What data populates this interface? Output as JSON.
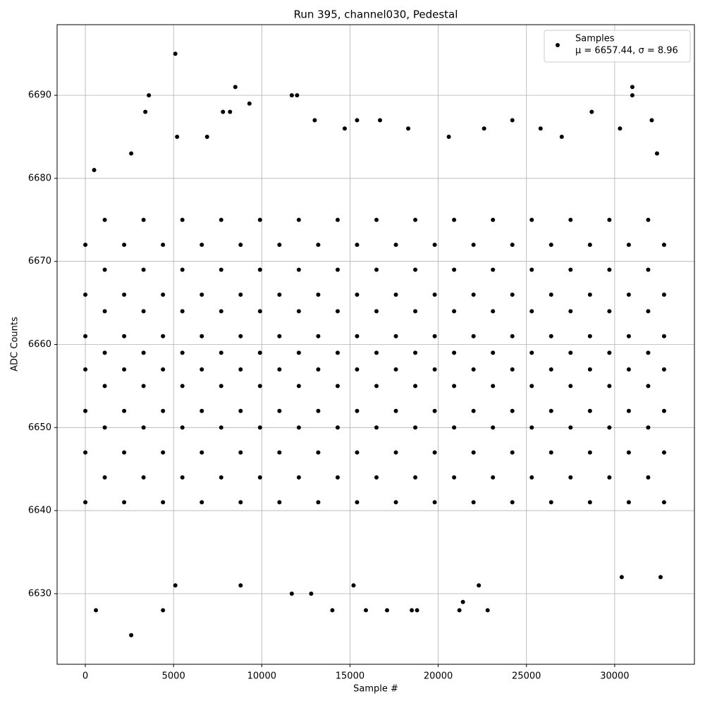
{
  "chart_data": {
    "type": "scatter",
    "title": "Run 395, channel030, Pedestal",
    "x_label": "Sample #",
    "y_label": "ADC Counts",
    "xlim": [
      -1600,
      34520
    ],
    "ylim": [
      6621.5,
      6698.5
    ],
    "xticks": [
      0,
      5000,
      10000,
      15000,
      20000,
      25000,
      30000
    ],
    "yticks": [
      6630,
      6640,
      6650,
      6660,
      6670,
      6680,
      6690
    ],
    "grid": true,
    "legend": "upper right",
    "legend_note": "μ = 6657.44, σ = 8.96",
    "series": [
      {
        "name": "Samples",
        "color": "#000000",
        "x": [
          0,
          0,
          0,
          0,
          0,
          0,
          0,
          1100,
          1100,
          1100,
          1100,
          1100,
          1100,
          1100,
          2200,
          2200,
          2200,
          2200,
          2200,
          2200,
          2200,
          3300,
          3300,
          3300,
          3300,
          3300,
          3300,
          3300,
          4400,
          4400,
          4400,
          4400,
          4400,
          4400,
          4400,
          5500,
          5500,
          5500,
          5500,
          5500,
          5500,
          5500,
          6600,
          6600,
          6600,
          6600,
          6600,
          6600,
          6600,
          7700,
          7700,
          7700,
          7700,
          7700,
          7700,
          7700,
          8800,
          8800,
          8800,
          8800,
          8800,
          8800,
          8800,
          9900,
          9900,
          9900,
          9900,
          9900,
          9900,
          9900,
          11000,
          11000,
          11000,
          11000,
          11000,
          11000,
          11000,
          12100,
          12100,
          12100,
          12100,
          12100,
          12100,
          12100,
          13200,
          13200,
          13200,
          13200,
          13200,
          13200,
          13200,
          14300,
          14300,
          14300,
          14300,
          14300,
          14300,
          14300,
          15400,
          15400,
          15400,
          15400,
          15400,
          15400,
          15400,
          16500,
          16500,
          16500,
          16500,
          16500,
          16500,
          16500,
          17600,
          17600,
          17600,
          17600,
          17600,
          17600,
          17600,
          18700,
          18700,
          18700,
          18700,
          18700,
          18700,
          18700,
          19800,
          19800,
          19800,
          19800,
          19800,
          19800,
          19800,
          20900,
          20900,
          20900,
          20900,
          20900,
          20900,
          20900,
          22000,
          22000,
          22000,
          22000,
          22000,
          22000,
          22000,
          23100,
          23100,
          23100,
          23100,
          23100,
          23100,
          23100,
          24200,
          24200,
          24200,
          24200,
          24200,
          24200,
          24200,
          25300,
          25300,
          25300,
          25300,
          25300,
          25300,
          25300,
          26400,
          26400,
          26400,
          26400,
          26400,
          26400,
          26400,
          27500,
          27500,
          27500,
          27500,
          27500,
          27500,
          27500,
          28600,
          28600,
          28600,
          28600,
          28600,
          28600,
          28600,
          29700,
          29700,
          29700,
          29700,
          29700,
          29700,
          29700,
          30800,
          30800,
          30800,
          30800,
          30800,
          30800,
          30800,
          31900,
          31900,
          31900,
          31900,
          31900,
          31900,
          31900,
          32800,
          32800,
          32800,
          32800,
          32800,
          32800,
          32800,
          2600,
          600,
          4400,
          5100,
          3600,
          8500,
          9300,
          11700,
          12000,
          11700,
          12800,
          14000,
          15900,
          17100,
          18500,
          18800,
          21200,
          21400,
          22800,
          31000,
          31000,
          32100,
          5100,
          8800,
          15200,
          22300,
          32600,
          30400,
          16700,
          15400,
          13000,
          3400,
          7800,
          8200,
          28700,
          24200,
          500,
          2600,
          14700,
          18300,
          22600,
          25800,
          30300,
          32400,
          6900,
          5200,
          20600,
          27000
        ],
        "values": [
          6641,
          6647,
          6652,
          6657,
          6661,
          6666,
          6672,
          6644,
          6650,
          6655,
          6659,
          6664,
          6669,
          6675,
          6641,
          6647,
          6652,
          6657,
          6661,
          6666,
          6672,
          6644,
          6650,
          6655,
          6659,
          6664,
          6669,
          6675,
          6641,
          6647,
          6652,
          6657,
          6661,
          6666,
          6672,
          6644,
          6650,
          6655,
          6659,
          6664,
          6669,
          6675,
          6641,
          6647,
          6652,
          6657,
          6661,
          6666,
          6672,
          6644,
          6650,
          6655,
          6659,
          6664,
          6669,
          6675,
          6641,
          6647,
          6652,
          6657,
          6661,
          6666,
          6672,
          6644,
          6650,
          6655,
          6659,
          6664,
          6669,
          6675,
          6641,
          6647,
          6652,
          6657,
          6661,
          6666,
          6672,
          6644,
          6650,
          6655,
          6659,
          6664,
          6669,
          6675,
          6641,
          6647,
          6652,
          6657,
          6661,
          6666,
          6672,
          6644,
          6650,
          6655,
          6659,
          6664,
          6669,
          6675,
          6641,
          6647,
          6652,
          6657,
          6661,
          6666,
          6672,
          6644,
          6650,
          6655,
          6659,
          6664,
          6669,
          6675,
          6641,
          6647,
          6652,
          6657,
          6661,
          6666,
          6672,
          6644,
          6650,
          6655,
          6659,
          6664,
          6669,
          6675,
          6641,
          6647,
          6652,
          6657,
          6661,
          6666,
          6672,
          6644,
          6650,
          6655,
          6659,
          6664,
          6669,
          6675,
          6641,
          6647,
          6652,
          6657,
          6661,
          6666,
          6672,
          6644,
          6650,
          6655,
          6659,
          6664,
          6669,
          6675,
          6641,
          6647,
          6652,
          6657,
          6661,
          6666,
          6672,
          6644,
          6650,
          6655,
          6659,
          6664,
          6669,
          6675,
          6641,
          6647,
          6652,
          6657,
          6661,
          6666,
          6672,
          6644,
          6650,
          6655,
          6659,
          6664,
          6669,
          6675,
          6641,
          6647,
          6652,
          6657,
          6661,
          6666,
          6672,
          6644,
          6650,
          6655,
          6659,
          6664,
          6669,
          6675,
          6641,
          6647,
          6652,
          6657,
          6661,
          6666,
          6672,
          6644,
          6650,
          6655,
          6659,
          6664,
          6669,
          6675,
          6641,
          6647,
          6652,
          6657,
          6661,
          6666,
          6672,
          6625,
          6628,
          6628,
          6695,
          6690,
          6691,
          6689,
          6690,
          6690,
          6630,
          6630,
          6628,
          6628,
          6628,
          6628,
          6628,
          6628,
          6629,
          6628,
          6691,
          6690,
          6687,
          6631,
          6631,
          6631,
          6631,
          6632,
          6632,
          6687,
          6687,
          6687,
          6688,
          6688,
          6688,
          6688,
          6687,
          6681,
          6683,
          6686,
          6686,
          6686,
          6686,
          6686,
          6683,
          6685,
          6685,
          6685,
          6685
        ]
      }
    ]
  }
}
